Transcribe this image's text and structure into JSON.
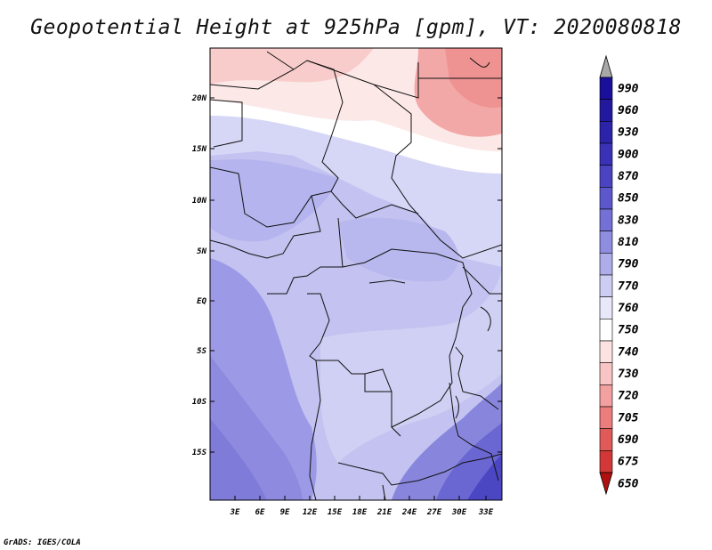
{
  "title": "Geopotential Height at 925hPa [gpm], VT: 2020080818",
  "credit": "GrADS: IGES/COLA",
  "lat_labels": [
    "20N",
    "15N",
    "10N",
    "5N",
    "EQ",
    "5S",
    "10S",
    "15S"
  ],
  "lon_labels": [
    "3E",
    "6E",
    "9E",
    "12E",
    "15E",
    "18E",
    "21E",
    "24E",
    "27E",
    "30E",
    "33E"
  ],
  "colorbar": {
    "levels": [
      "990",
      "960",
      "930",
      "900",
      "870",
      "850",
      "830",
      "810",
      "790",
      "770",
      "760",
      "750",
      "740",
      "730",
      "720",
      "705",
      "690",
      "675",
      "650"
    ],
    "colors": [
      "#1a0f9a",
      "#22199f",
      "#2c23ab",
      "#3a32b6",
      "#4a44c2",
      "#5c58cc",
      "#7471d6",
      "#8f8de0",
      "#aeadea",
      "#cdcdf3",
      "#e8e8fa",
      "#ffffff",
      "#fde2e2",
      "#f8c4c4",
      "#f3a0a0",
      "#ec7d7d",
      "#e05a5a",
      "#d23838",
      "#c41e1e",
      "#b01010"
    ]
  }
}
